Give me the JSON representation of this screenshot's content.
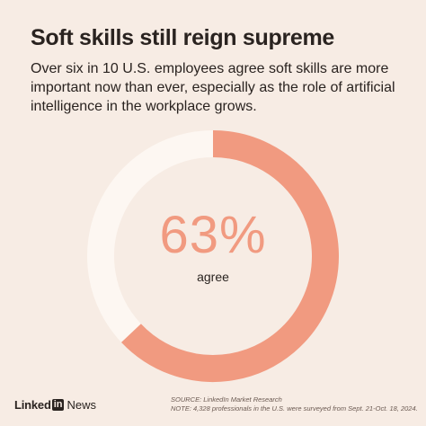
{
  "header": {
    "title": "Soft skills still reign supreme",
    "subtitle": "Over six in 10 U.S. employees agree soft skills are more important now than ever, especially as the role of artificial intelligence in the workplace grows."
  },
  "chart_data": {
    "type": "pie",
    "style": "donut",
    "slices": [
      {
        "label": "agree",
        "value": 63
      },
      {
        "label": "",
        "value": 37
      }
    ],
    "center_value": "63%",
    "center_label": "agree",
    "colors": {
      "agree": "#f19a80",
      "remainder": "#fdf7f2"
    }
  },
  "footer": {
    "brand_word": "Linked",
    "brand_in": "in",
    "brand_news": "News",
    "source": "SOURCE: LinkedIn Market Research",
    "note": "NOTE: 4,328 professionals in the U.S. were surveyed from Sept. 21-Oct. 18, 2024."
  }
}
